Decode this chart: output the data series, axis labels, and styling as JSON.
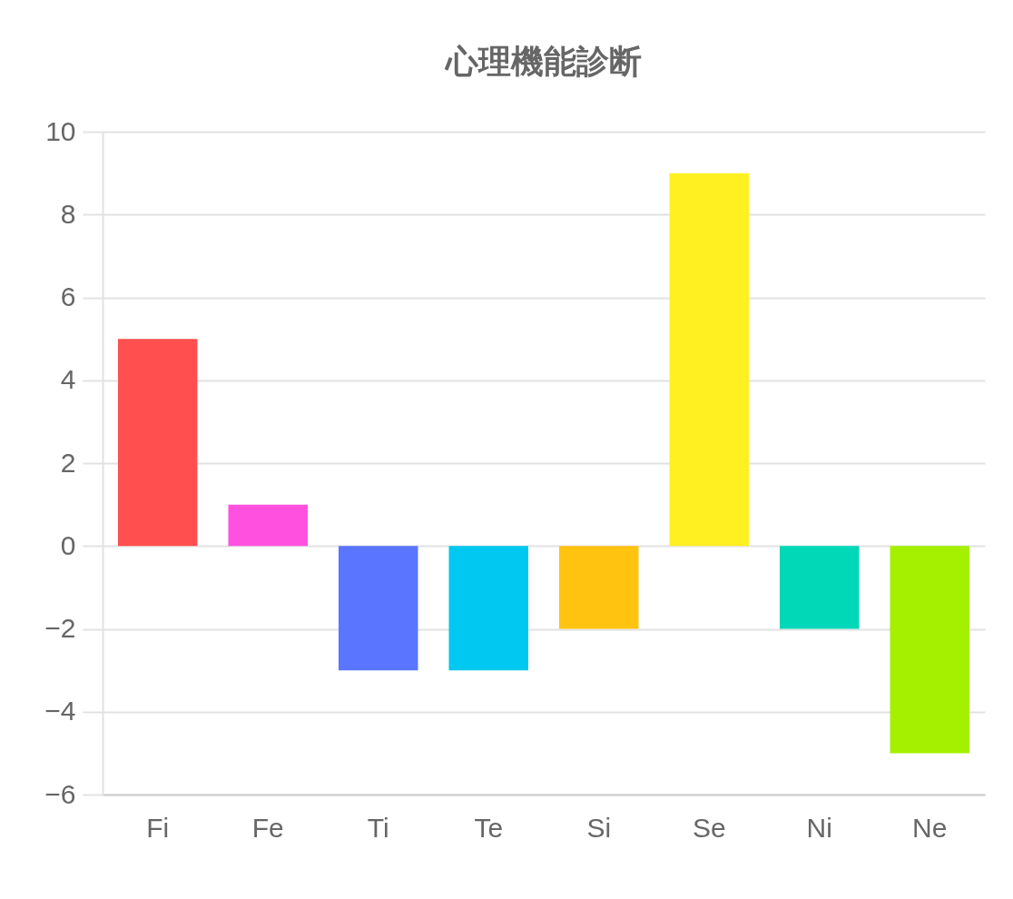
{
  "chart_data": {
    "type": "bar",
    "title": "心理機能診断",
    "categories": [
      "Fi",
      "Fe",
      "Ti",
      "Te",
      "Si",
      "Se",
      "Ni",
      "Ne"
    ],
    "values": [
      5,
      1,
      -3,
      -3,
      -2,
      9,
      -2,
      -5
    ],
    "colors": [
      "#ff4f4f",
      "#ff50e0",
      "#5a75ff",
      "#00c8f0",
      "#ffc310",
      "#fff022",
      "#00d8b8",
      "#a4f000"
    ],
    "ylim": [
      -6,
      10
    ],
    "yticks": [
      -6,
      -4,
      -2,
      0,
      2,
      4,
      6,
      8,
      10
    ],
    "grid": "y"
  }
}
